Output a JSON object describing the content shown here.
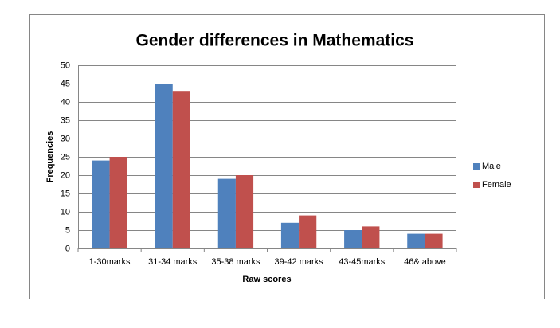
{
  "chart_data": {
    "type": "bar",
    "title": "Gender differences in Mathematics",
    "x_label": "Raw scores",
    "y_label": "Frequencies",
    "categories": [
      "1-30marks",
      "31-34 marks",
      "35-38 marks",
      "39-42 marks",
      "43-45marks",
      "46& above"
    ],
    "series": [
      {
        "name": "Male",
        "color": "#4f81bd",
        "values": [
          24,
          45,
          19,
          7,
          5,
          4
        ]
      },
      {
        "name": "Female",
        "color": "#c0504d",
        "values": [
          25,
          43,
          20,
          9,
          6,
          4
        ]
      }
    ],
    "ylim": [
      0,
      50
    ],
    "yticks": [
      0,
      5,
      10,
      15,
      20,
      25,
      30,
      35,
      40,
      45,
      50
    ],
    "grid": true,
    "legend": "right"
  }
}
